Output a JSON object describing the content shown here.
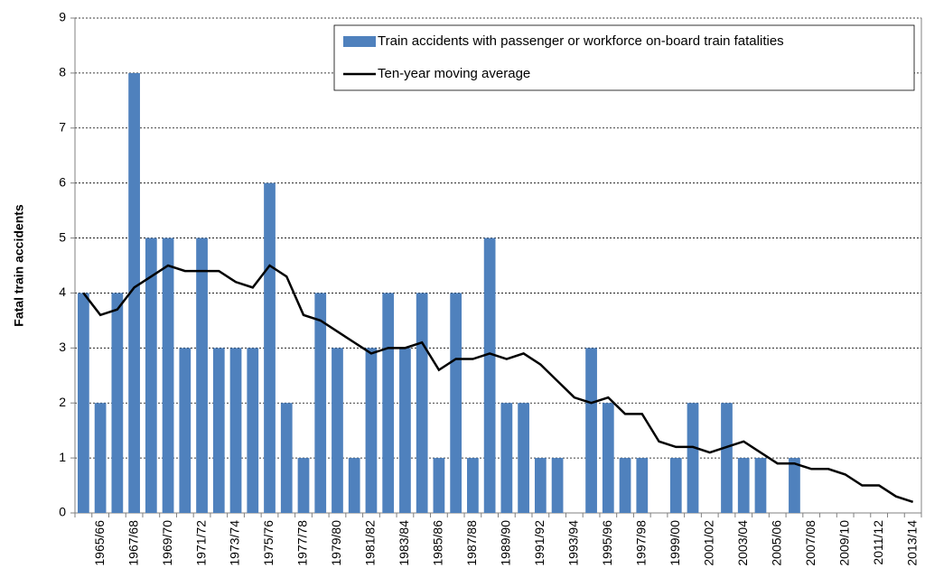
{
  "chart_data": {
    "type": "bar",
    "y_label": "Fatal train accidents",
    "categories": [
      null,
      "1965/66",
      null,
      "1967/68",
      null,
      "1969/70",
      null,
      "1971/72",
      null,
      "1973/74",
      null,
      "1975/76",
      null,
      "1977/78",
      null,
      "1979/80",
      null,
      "1981/82",
      null,
      "1983/84",
      null,
      "1985/86",
      null,
      "1987/88",
      null,
      "1989/90",
      null,
      "1991/92",
      null,
      "1993/94",
      null,
      "1995/96",
      null,
      "1997/98",
      null,
      "1999/00",
      null,
      "2001/02",
      null,
      "2003/04",
      null,
      "2005/06",
      null,
      "2007/08",
      null,
      "2009/10",
      null,
      "2011/12",
      null,
      "2013/14"
    ],
    "series": [
      {
        "name": "Train accidents with passenger or workforce on-board train fatalities",
        "color": "#4f81bd",
        "type": "bar",
        "values": [
          4,
          2,
          4,
          8,
          5,
          5,
          3,
          5,
          3,
          3,
          3,
          6,
          2,
          1,
          4,
          3,
          1,
          3,
          4,
          3,
          4,
          1,
          4,
          1,
          5,
          2,
          2,
          1,
          1,
          0,
          3,
          2,
          1,
          1,
          0,
          1,
          2,
          0,
          2,
          1,
          1,
          0,
          1,
          0,
          0,
          0,
          0,
          0,
          0,
          0
        ]
      },
      {
        "name": "Ten-year moving average",
        "color": "#000000",
        "type": "line",
        "values": [
          4.0,
          3.6,
          3.7,
          4.1,
          4.3,
          4.5,
          4.4,
          4.4,
          4.4,
          4.2,
          4.1,
          4.5,
          4.3,
          3.6,
          3.5,
          3.3,
          3.1,
          2.9,
          3.0,
          3.0,
          3.1,
          2.6,
          2.8,
          2.8,
          2.9,
          2.8,
          2.9,
          2.7,
          2.4,
          2.1,
          2.0,
          2.1,
          1.8,
          1.8,
          1.3,
          1.2,
          1.2,
          1.1,
          1.2,
          1.3,
          1.1,
          0.9,
          0.9,
          0.8,
          0.8,
          0.7,
          0.5,
          0.5,
          0.3,
          0.2
        ]
      }
    ],
    "ylim": [
      0,
      9
    ],
    "yticks": [
      0,
      1,
      2,
      3,
      4,
      5,
      6,
      7,
      8,
      9
    ],
    "grid": true,
    "legend": "upper right"
  }
}
